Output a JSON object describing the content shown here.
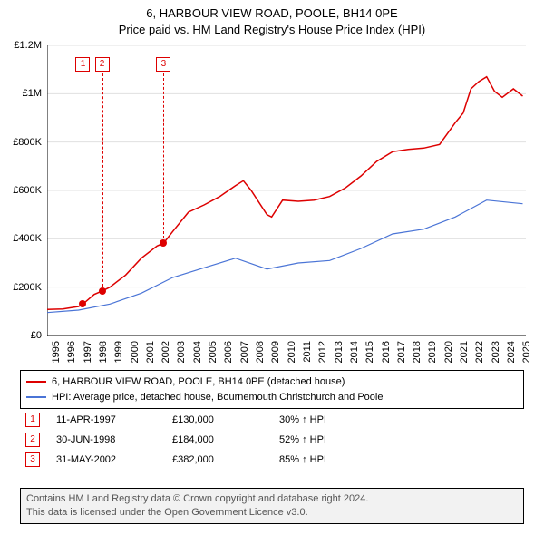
{
  "title": {
    "line1": "6, HARBOUR VIEW ROAD, POOLE, BH14 0PE",
    "line2": "Price paid vs. HM Land Registry's House Price Index (HPI)"
  },
  "chart": {
    "type": "line",
    "background_color": "#ffffff",
    "grid_color": "#e0e0e0",
    "axis_color": "#000000",
    "x": {
      "min": 1995,
      "max": 2025.5,
      "ticks": [
        1995,
        1996,
        1997,
        1998,
        1999,
        2000,
        2001,
        2002,
        2003,
        2004,
        2005,
        2006,
        2007,
        2008,
        2009,
        2010,
        2011,
        2012,
        2013,
        2014,
        2015,
        2016,
        2017,
        2018,
        2019,
        2020,
        2021,
        2022,
        2023,
        2024,
        2025
      ],
      "tick_labels": [
        "1995",
        "1996",
        "1997",
        "1998",
        "1999",
        "2000",
        "2001",
        "2002",
        "2003",
        "2004",
        "2005",
        "2006",
        "2007",
        "2008",
        "2009",
        "2010",
        "2011",
        "2012",
        "2013",
        "2014",
        "2015",
        "2016",
        "2017",
        "2018",
        "2019",
        "2020",
        "2021",
        "2022",
        "2023",
        "2024",
        "2025"
      ],
      "label_fontsize": 11,
      "rotation": -90
    },
    "y": {
      "min": 0,
      "max": 1200000,
      "ticks": [
        0,
        200000,
        400000,
        600000,
        800000,
        1000000,
        1200000
      ],
      "tick_labels": [
        "£0",
        "£200K",
        "£400K",
        "£600K",
        "£800K",
        "£1M",
        "£1.2M"
      ],
      "label_fontsize": 11
    },
    "series": [
      {
        "name": "6, HARBOUR VIEW ROAD, POOLE, BH14 0PE (detached house)",
        "color": "#dd0000",
        "line_width": 1.5,
        "x": [
          1995,
          1996,
          1997,
          1997.28,
          1998,
          1998.5,
          1999,
          2000,
          2001,
          2002,
          2002.42,
          2003,
          2004,
          2005,
          2006,
          2007,
          2007.5,
          2008,
          2009,
          2009.3,
          2010,
          2011,
          2012,
          2013,
          2014,
          2015,
          2016,
          2017,
          2018,
          2019,
          2020,
          2021,
          2021.5,
          2022,
          2022.5,
          2023,
          2023.5,
          2024,
          2024.7,
          2025.3
        ],
        "y": [
          108000,
          110000,
          120000,
          130000,
          170000,
          184000,
          200000,
          250000,
          320000,
          370000,
          382000,
          430000,
          510000,
          540000,
          575000,
          620000,
          640000,
          600000,
          500000,
          490000,
          560000,
          555000,
          560000,
          575000,
          610000,
          660000,
          720000,
          760000,
          770000,
          775000,
          790000,
          880000,
          920000,
          1020000,
          1050000,
          1070000,
          1010000,
          985000,
          1020000,
          990000
        ]
      },
      {
        "name": "HPI: Average price, detached house, Bournemouth Christchurch and Poole",
        "color": "#4a74d6",
        "line_width": 1.2,
        "x": [
          1995,
          1997,
          1999,
          2001,
          2003,
          2005,
          2007,
          2009,
          2011,
          2013,
          2015,
          2017,
          2019,
          2021,
          2023,
          2025.3
        ],
        "y": [
          95000,
          105000,
          130000,
          175000,
          240000,
          280000,
          320000,
          275000,
          300000,
          310000,
          360000,
          420000,
          440000,
          490000,
          560000,
          545000
        ]
      }
    ],
    "markers": [
      {
        "n": "1",
        "x": 1997.28,
        "y": 130000,
        "color": "#dd0000"
      },
      {
        "n": "2",
        "x": 1998.5,
        "y": 184000,
        "color": "#dd0000"
      },
      {
        "n": "3",
        "x": 2002.42,
        "y": 382000,
        "color": "#dd0000"
      }
    ],
    "marker_label_top_y": 1150000,
    "marker_box_border": "#dd0000",
    "vline_color": "#dd0000"
  },
  "legend": {
    "items": [
      {
        "color": "#dd0000",
        "label": "6, HARBOUR VIEW ROAD, POOLE, BH14 0PE (detached house)"
      },
      {
        "color": "#4a74d6",
        "label": "HPI: Average price, detached house, Bournemouth Christchurch and Poole"
      }
    ]
  },
  "events": [
    {
      "n": "1",
      "date": "11-APR-1997",
      "price": "£130,000",
      "pct": "30% ↑ HPI",
      "color": "#dd0000"
    },
    {
      "n": "2",
      "date": "30-JUN-1998",
      "price": "£184,000",
      "pct": "52% ↑ HPI",
      "color": "#dd0000"
    },
    {
      "n": "3",
      "date": "31-MAY-2002",
      "price": "£382,000",
      "pct": "85% ↑ HPI",
      "color": "#dd0000"
    }
  ],
  "footer": {
    "line1": "Contains HM Land Registry data © Crown copyright and database right 2024.",
    "line2": "This data is licensed under the Open Government Licence v3.0."
  }
}
